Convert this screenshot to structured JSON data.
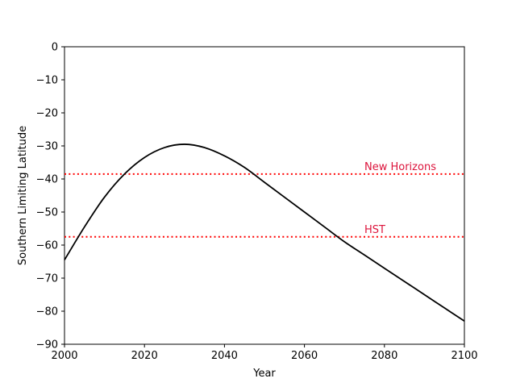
{
  "chart_data": {
    "type": "line",
    "title": "",
    "xlabel": "Year",
    "ylabel": "Southern Limiting Latitude",
    "xlim": [
      2000,
      2100
    ],
    "ylim": [
      -90,
      0
    ],
    "xticks": [
      2000,
      2020,
      2040,
      2060,
      2080,
      2100
    ],
    "yticks": [
      0,
      -10,
      -20,
      -30,
      -40,
      -50,
      -60,
      -70,
      -80,
      -90
    ],
    "grid": false,
    "legend": "none",
    "series": [
      {
        "color": "#000000",
        "line_style": "solid",
        "x": [
          2000,
          2005,
          2010,
          2015,
          2020,
          2025,
          2030,
          2035,
          2040,
          2045,
          2050,
          2055,
          2060,
          2065,
          2070,
          2075,
          2080,
          2085,
          2090,
          2095,
          2100
        ],
        "y": [
          -64.5,
          -54.5,
          -45.5,
          -38.5,
          -33.5,
          -30.5,
          -29.5,
          -30.5,
          -33.0,
          -36.5,
          -41.0,
          -45.5,
          -50.0,
          -54.5,
          -59.0,
          -63.0,
          -67.0,
          -71.0,
          -75.0,
          -79.0,
          -83.0
        ]
      }
    ],
    "reference_lines": [
      {
        "label": "New Horizons",
        "y": -38.5,
        "color": "#ff0000",
        "label_color": "#dc143c",
        "line_style": "dotted",
        "label_x": 2075
      },
      {
        "label": "HST",
        "y": -57.5,
        "color": "#ff0000",
        "label_color": "#dc143c",
        "line_style": "dotted",
        "label_x": 2075
      }
    ]
  }
}
